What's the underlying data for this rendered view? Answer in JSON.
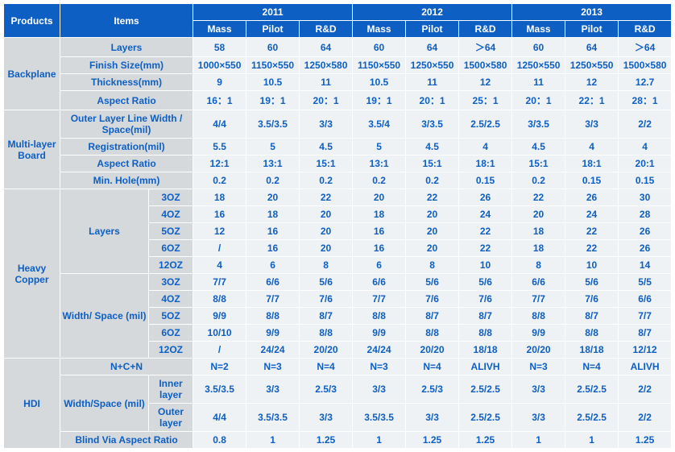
{
  "header": {
    "products": "Products",
    "items": "Items",
    "years": [
      "2011",
      "2012",
      "2013"
    ],
    "subcols": [
      "Mass",
      "Pilot",
      "R&D"
    ]
  },
  "groups": [
    {
      "name": "Backplane",
      "rows": [
        {
          "item": "Layers",
          "span": 3,
          "data": [
            "58",
            "60",
            "64",
            "60",
            "64",
            "＞64",
            "60",
            "64",
            "＞64"
          ]
        },
        {
          "item": "Finish Size(mm)",
          "span": 3,
          "data": [
            "1000×550",
            "1150×550",
            "1250×580",
            "1150×550",
            "1250×550",
            "1500×580",
            "1250×550",
            "1250×550",
            "1500×580"
          ]
        },
        {
          "item": "Thickness(mm)",
          "span": 3,
          "data": [
            "9",
            "10.5",
            "11",
            "10.5",
            "11",
            "12",
            "11",
            "12",
            "12.7"
          ]
        },
        {
          "item": "Aspect Ratio",
          "span": 3,
          "data": [
            "16：1",
            "19：1",
            "20：1",
            "19：1",
            "20：1",
            "25：1",
            "20：1",
            "22：1",
            "28：1"
          ]
        }
      ]
    },
    {
      "name": "Multi-layer Board",
      "rows": [
        {
          "item": "Outer Layer Line Width / Space(mil)",
          "span": 3,
          "data": [
            "4/4",
            "3.5/3.5",
            "3/3",
            "3.5/4",
            "3/3.5",
            "2.5/2.5",
            "3/3.5",
            "3/3",
            "2/2"
          ]
        },
        {
          "item": "Registration(mil)",
          "span": 3,
          "data": [
            "5.5",
            "5",
            "4.5",
            "5",
            "4.5",
            "4",
            "4.5",
            "4",
            "4"
          ]
        },
        {
          "item": "Aspect Ratio",
          "span": 3,
          "data": [
            "12:1",
            "13:1",
            "15:1",
            "13:1",
            "15:1",
            "18:1",
            "15:1",
            "18:1",
            "20:1"
          ]
        },
        {
          "item": "Min. Hole(mm)",
          "span": 3,
          "data": [
            "0.2",
            "0.2",
            "0.2",
            "0.2",
            "0.2",
            "0.15",
            "0.2",
            "0.15",
            "0.15"
          ]
        }
      ]
    },
    {
      "name": "Heavy Copper",
      "subgroups": [
        {
          "name": "Layers",
          "rows": [
            {
              "item": "3OZ",
              "data": [
                "18",
                "20",
                "22",
                "20",
                "22",
                "26",
                "22",
                "26",
                "30"
              ]
            },
            {
              "item": "4OZ",
              "data": [
                "16",
                "18",
                "20",
                "18",
                "20",
                "24",
                "20",
                "24",
                "28"
              ]
            },
            {
              "item": "5OZ",
              "data": [
                "12",
                "16",
                "20",
                "16",
                "20",
                "22",
                "18",
                "22",
                "26"
              ]
            },
            {
              "item": "6OZ",
              "data": [
                "/",
                "16",
                "20",
                "16",
                "20",
                "22",
                "18",
                "22",
                "26"
              ]
            },
            {
              "item": "12OZ",
              "data": [
                "4",
                "6",
                "8",
                "6",
                "8",
                "10",
                "8",
                "10",
                "14"
              ]
            }
          ]
        },
        {
          "name": "Width/ Space (mil)",
          "rows": [
            {
              "item": "3OZ",
              "data": [
                "7/7",
                "6/6",
                "5/6",
                "6/6",
                "5/6",
                "5/6",
                "6/6",
                "5/6",
                "5/5"
              ]
            },
            {
              "item": "4OZ",
              "data": [
                "8/8",
                "7/7",
                "7/6",
                "7/7",
                "7/6",
                "7/6",
                "7/7",
                "7/6",
                "6/6"
              ]
            },
            {
              "item": "5OZ",
              "data": [
                "9/9",
                "8/8",
                "8/7",
                "8/8",
                "8/7",
                "8/7",
                "8/8",
                "8/7",
                "7/7"
              ]
            },
            {
              "item": "6OZ",
              "data": [
                "10/10",
                "9/9",
                "8/8",
                "9/9",
                "8/8",
                "8/8",
                "9/9",
                "8/8",
                "8/7"
              ]
            },
            {
              "item": "12OZ",
              "data": [
                "/",
                "24/24",
                "20/20",
                "24/24",
                "20/20",
                "18/18",
                "20/20",
                "18/18",
                "12/12"
              ]
            }
          ]
        }
      ]
    },
    {
      "name": "HDI",
      "rows": [
        {
          "item": "N+C+N",
          "span": 3,
          "data": [
            "N=2",
            "N=3",
            "N=4",
            "N=3",
            "N=4",
            "ALIVH",
            "N=3",
            "N=4",
            "ALIVH"
          ]
        }
      ],
      "subgroups": [
        {
          "name": "Width/Space (mil)",
          "rows": [
            {
              "item": "Inner layer",
              "data": [
                "3.5/3.5",
                "3/3",
                "2.5/3",
                "3/3",
                "2.5/3",
                "2.5/2.5",
                "3/3",
                "2.5/2.5",
                "2/2"
              ]
            },
            {
              "item": "Outer layer",
              "data": [
                "4/4",
                "3.5/3.5",
                "3/3",
                "3.5/3.5",
                "3/3",
                "2.5/2.5",
                "3/3",
                "2.5/2.5",
                "2/2"
              ]
            }
          ]
        }
      ],
      "rows2": [
        {
          "item": "Blind Via Aspect Ratio",
          "span": 3,
          "data": [
            "0.8",
            "1",
            "1.25",
            "1",
            "1.25",
            "1.25",
            "1",
            "1",
            "1.25"
          ]
        }
      ]
    }
  ]
}
